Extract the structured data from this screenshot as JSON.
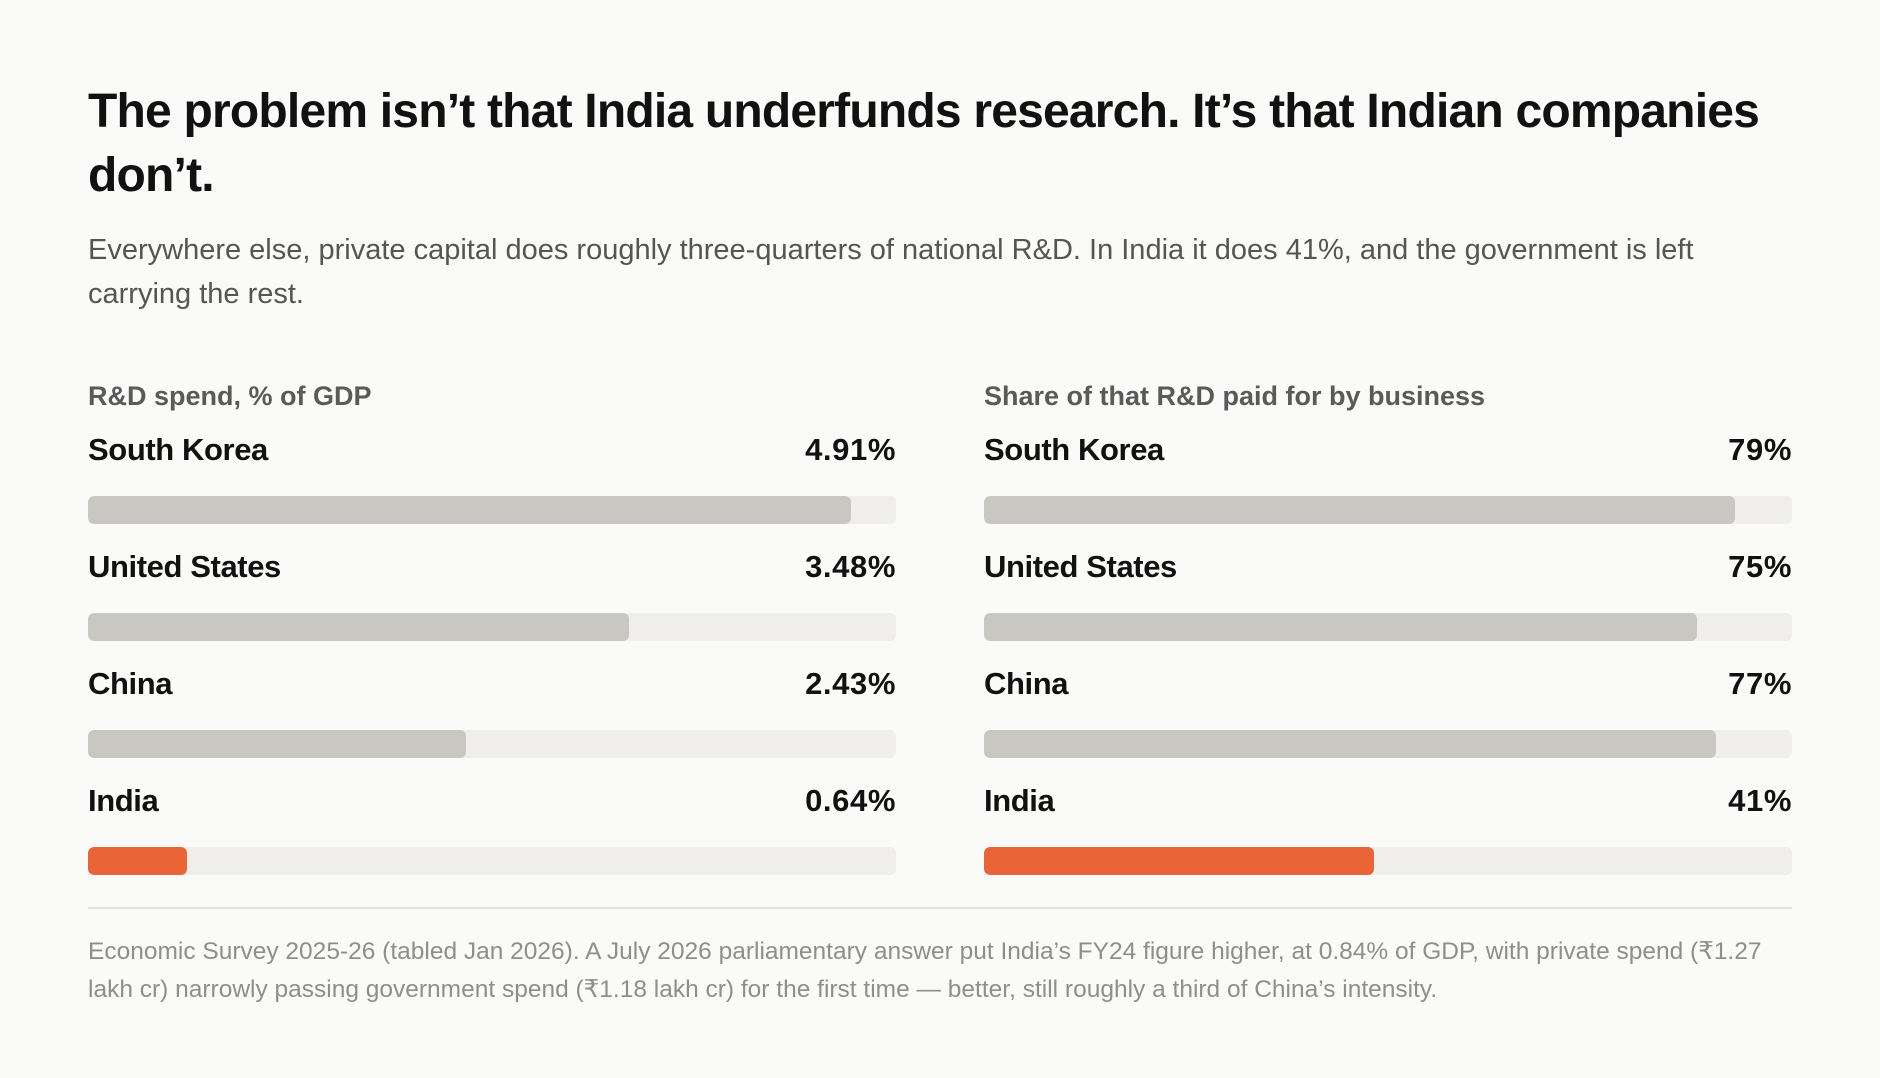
{
  "title": "The problem isn’t that India underfunds research. It’s that Indian companies don’t.",
  "subtitle": "Everywhere else, private capital does roughly three-quarters of national R&D. In India it does 41%, and the government is left carrying the rest.",
  "colors": {
    "background": "#fafaf8",
    "bar_default": "#c8c7c2",
    "bar_highlight": "#e96537",
    "track": "#efeeea"
  },
  "chart_data": [
    {
      "type": "bar",
      "orientation": "horizontal",
      "title": "R&D spend, % of GDP",
      "categories": [
        "South Korea",
        "United States",
        "China",
        "India"
      ],
      "values": [
        4.91,
        3.48,
        2.43,
        0.64
      ],
      "value_labels": [
        "4.91%",
        "3.48%",
        "2.43%",
        "0.64%"
      ],
      "xlim": [
        0,
        5.2
      ],
      "highlight": "India",
      "grid": false
    },
    {
      "type": "bar",
      "orientation": "horizontal",
      "title": "Share of that R&D paid for by business",
      "categories": [
        "South Korea",
        "United States",
        "China",
        "India"
      ],
      "values": [
        79,
        75,
        77,
        41
      ],
      "value_labels": [
        "79%",
        "75%",
        "77%",
        "41%"
      ],
      "xlim": [
        0,
        85
      ],
      "highlight": "India",
      "grid": false
    }
  ],
  "source_note": "Economic Survey 2025-26 (tabled Jan 2026). A July 2026 parliamentary answer put India’s FY24 figure higher, at 0.84% of GDP, with private spend (₹1.27 lakh cr) narrowly passing government spend (₹1.18 lakh cr) for the first time — better, still roughly a third of China’s intensity."
}
